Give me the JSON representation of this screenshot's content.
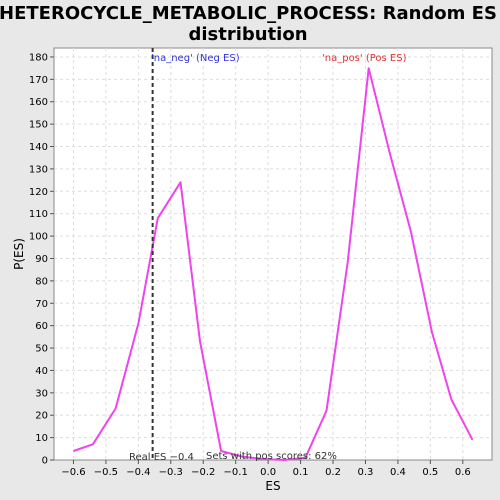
{
  "chart_data": {
    "type": "line",
    "title": [
      "HETEROCYCLE_METABOLIC_PROCESS: Random ES",
      "distribution"
    ],
    "xlabel": "ES",
    "ylabel": "P(ES)",
    "xlim": [
      -0.66,
      0.69
    ],
    "ylim": [
      0,
      184
    ],
    "x_ticks": [
      -0.6,
      -0.5,
      -0.4,
      -0.3,
      -0.2,
      -0.1,
      0.0,
      0.1,
      0.2,
      0.3,
      0.4,
      0.5,
      0.6
    ],
    "x_tick_labels": [
      "−0.6",
      "−0.5",
      "−0.4",
      "−0.3",
      "−0.2",
      "−0.1",
      "0.0",
      "0.1",
      "0.2",
      "0.3",
      "0.4",
      "0.5",
      "0.6"
    ],
    "y_ticks": [
      0,
      10,
      20,
      30,
      40,
      50,
      60,
      70,
      80,
      90,
      100,
      110,
      120,
      130,
      140,
      150,
      160,
      170,
      180
    ],
    "y_tick_labels": [
      "0",
      "10",
      "20",
      "30",
      "40",
      "50",
      "60",
      "70",
      "80",
      "90",
      "100",
      "110",
      "120",
      "130",
      "140",
      "150",
      "160",
      "170",
      "180"
    ],
    "grid": true,
    "series": [
      {
        "color": "#ee44ee",
        "x": [
          -0.6,
          -0.54,
          -0.47,
          -0.4,
          -0.34,
          -0.27,
          -0.21,
          -0.145,
          -0.08,
          -0.02,
          0.05,
          0.115,
          0.18,
          0.245,
          0.31,
          0.375,
          0.44,
          0.505,
          0.565,
          0.63
        ],
        "y": [
          4,
          7,
          23,
          61,
          108,
          124,
          53,
          4,
          1.5,
          0.5,
          0,
          1,
          22,
          88,
          175,
          137,
          102,
          57,
          27,
          9
        ]
      }
    ],
    "real_es": -0.356,
    "real_es_label": "Real ES −0.4",
    "neg_label": "'na_neg' (Neg ES)",
    "pos_label": "'na_pos' (Pos ES)",
    "sets_label": "Sets with pos scores: 62%",
    "colors": {
      "background": "#e8e8e8",
      "plot_bg": "#ffffff",
      "line": "#ee44ee",
      "neg_label": "#3333dd",
      "pos_label": "#dd3333",
      "grid": "#dddddd",
      "real_es_line": "#333333"
    }
  }
}
